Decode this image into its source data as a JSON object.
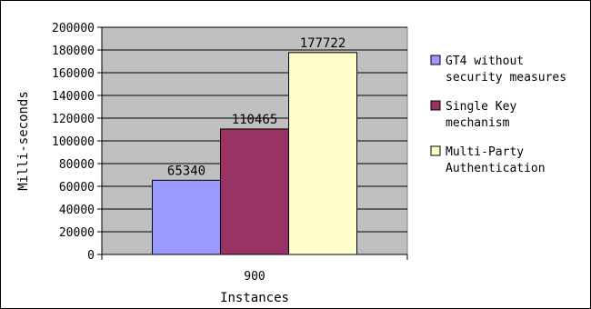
{
  "chart_data": {
    "type": "bar",
    "categories": [
      "900"
    ],
    "series": [
      {
        "name": "GT4 without security measures",
        "values": [
          65340
        ],
        "color": "#9999ff"
      },
      {
        "name": "Single Key mechanism",
        "values": [
          110465
        ],
        "color": "#993366"
      },
      {
        "name": "Multi-Party Authentication",
        "values": [
          177722
        ],
        "color": "#ffffcc"
      }
    ],
    "xlabel": "Instances",
    "ylabel": "Milli-seconds",
    "ylim": [
      0,
      200000
    ],
    "ytick_step": 20000,
    "grid": true,
    "plot_background": "#c0c0c0",
    "legend_position": "right",
    "legend_lines": [
      [
        "GT4 without",
        "security measures"
      ],
      [
        "Single Key",
        "mechanism"
      ],
      [
        "Multi-Party",
        "Authentication"
      ]
    ]
  }
}
